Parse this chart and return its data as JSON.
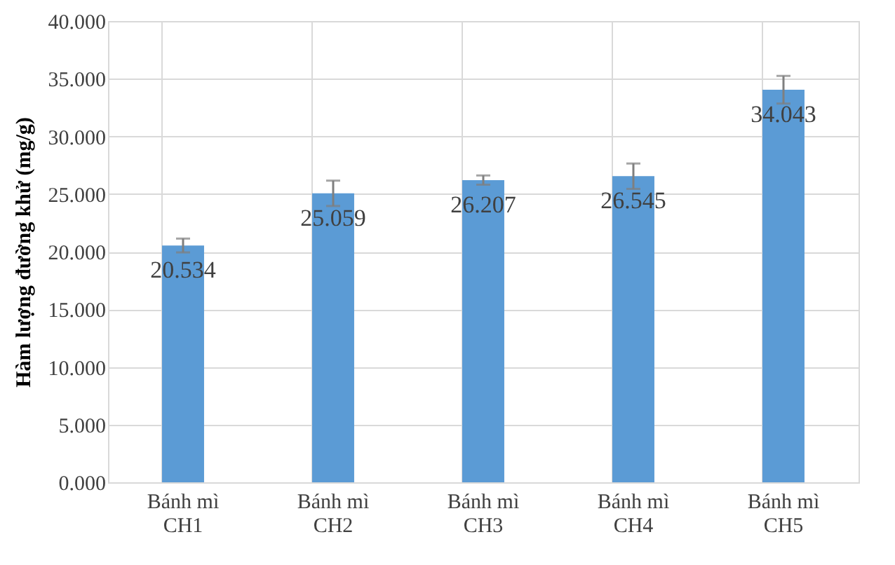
{
  "chart_data": {
    "type": "bar",
    "ylabel": "Hàm lượng đường khử (mg/g)",
    "categories": [
      "Bánh mì CH1",
      "Bánh mì CH2",
      "Bánh mì CH3",
      "Bánh mì CH4",
      "Bánh mì CH5"
    ],
    "values": [
      20.534,
      25.059,
      26.207,
      26.545,
      34.043
    ],
    "errors": [
      0.6,
      1.1,
      0.4,
      1.1,
      1.2
    ],
    "color": "#5b9bd5",
    "ylim": [
      0,
      40
    ],
    "yticks": [
      {
        "value": 0,
        "label": "0.000"
      },
      {
        "value": 5,
        "label": "5.000"
      },
      {
        "value": 10,
        "label": "10.000"
      },
      {
        "value": 15,
        "label": "15.000"
      },
      {
        "value": 20,
        "label": "20.000"
      },
      {
        "value": 25,
        "label": "25.000"
      },
      {
        "value": 30,
        "label": "30.000"
      },
      {
        "value": 35,
        "label": "35.000"
      },
      {
        "value": 40,
        "label": "40.000"
      }
    ],
    "data_labels": true,
    "grid": true
  }
}
